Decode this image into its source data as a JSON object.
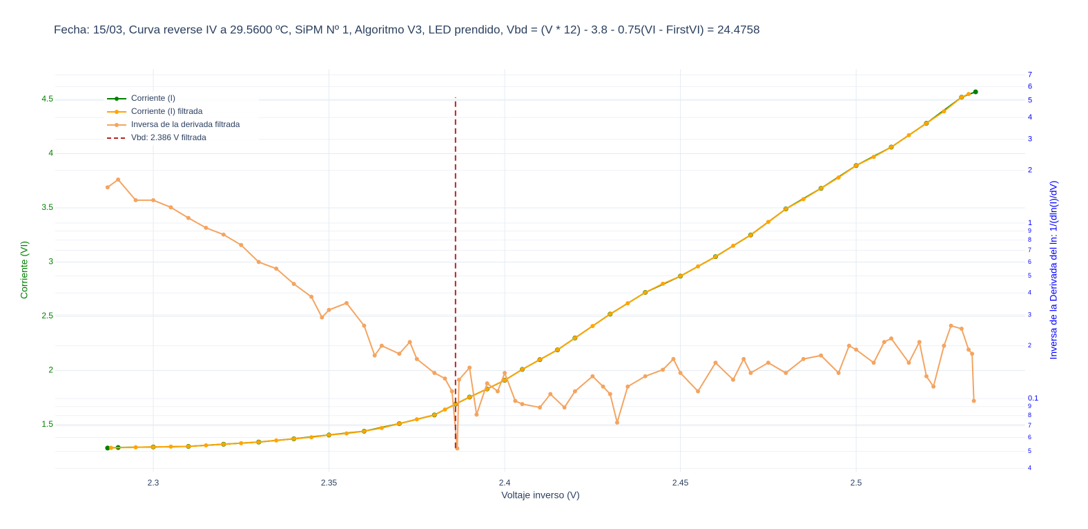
{
  "chart_data": {
    "type": "line",
    "title": "Fecha: 15/03, Curva reverse IV a 29.5600 ºC, SiPM Nº 1, Algoritmo V3, LED prendido,  Vbd = (V * 12) - 3.8 - 0.75(VI - FirstVI) = 24.4758",
    "x_label": "Voltaje inverso (V)",
    "y_label": "Corriente (VI)",
    "y2_label": "Inversa de la Derivada del ln: 1/(dln(I)/dV)",
    "xlim": [
      2.2721,
      2.5481
    ],
    "xticks": [
      2.3,
      2.35,
      2.4,
      2.45,
      2.5
    ],
    "ylim": [
      1.067,
      4.78
    ],
    "yticks": [
      1.5,
      2,
      2.5,
      3,
      3.5,
      4,
      4.5
    ],
    "y2lim": [
      0.0383,
      7.55
    ],
    "y2_log": true,
    "y2ticks": [
      {
        "value": 0.04,
        "label": "4"
      },
      {
        "value": 0.05,
        "label": "5"
      },
      {
        "value": 0.06,
        "label": "6"
      },
      {
        "value": 0.07,
        "label": "7"
      },
      {
        "value": 0.08,
        "label": "8"
      },
      {
        "value": 0.09,
        "label": "9"
      },
      0.1,
      {
        "value": 0.2,
        "label": "2"
      },
      {
        "value": 0.3,
        "label": "3"
      },
      {
        "value": 0.4,
        "label": "4"
      },
      {
        "value": 0.5,
        "label": "5"
      },
      {
        "value": 0.6,
        "label": "6"
      },
      {
        "value": 0.7,
        "label": "7"
      },
      {
        "value": 0.8,
        "label": "8"
      },
      {
        "value": 0.9,
        "label": "9"
      },
      1,
      2,
      3,
      4,
      5,
      6,
      7
    ],
    "grid": true,
    "legend": "top-left",
    "series": [
      {
        "name": "Corriente (I)",
        "color": "#008000",
        "mode": "lines+markers",
        "axis": "y",
        "x": [
          2.287,
          2.29,
          2.3,
          2.31,
          2.32,
          2.33,
          2.34,
          2.35,
          2.36,
          2.37,
          2.38,
          2.386,
          2.39,
          2.395,
          2.4,
          2.405,
          2.41,
          2.415,
          2.42,
          2.43,
          2.44,
          2.45,
          2.46,
          2.47,
          2.48,
          2.49,
          2.5,
          2.51,
          2.52,
          2.53,
          2.534
        ],
        "values": [
          1.285,
          1.29,
          1.295,
          1.3,
          1.32,
          1.34,
          1.37,
          1.405,
          1.44,
          1.51,
          1.59,
          1.69,
          1.755,
          1.83,
          1.91,
          2.01,
          2.1,
          2.19,
          2.3,
          2.52,
          2.72,
          2.87,
          3.05,
          3.25,
          3.49,
          3.68,
          3.89,
          4.06,
          4.28,
          4.52,
          4.57
        ]
      },
      {
        "name": "Corriente (I) filtrada",
        "color": "#FFA500",
        "mode": "lines+markers",
        "axis": "y",
        "x": [
          2.288,
          2.295,
          2.3,
          2.305,
          2.31,
          2.315,
          2.32,
          2.325,
          2.33,
          2.335,
          2.34,
          2.345,
          2.35,
          2.355,
          2.36,
          2.365,
          2.37,
          2.375,
          2.38,
          2.383,
          2.386,
          2.39,
          2.395,
          2.4,
          2.405,
          2.41,
          2.415,
          2.42,
          2.425,
          2.43,
          2.435,
          2.44,
          2.445,
          2.45,
          2.455,
          2.46,
          2.465,
          2.47,
          2.475,
          2.48,
          2.485,
          2.49,
          2.495,
          2.5,
          2.505,
          2.51,
          2.515,
          2.52,
          2.525,
          2.53,
          2.532
        ],
        "values": [
          1.287,
          1.292,
          1.295,
          1.298,
          1.3,
          1.31,
          1.32,
          1.33,
          1.34,
          1.355,
          1.37,
          1.385,
          1.405,
          1.42,
          1.44,
          1.47,
          1.51,
          1.55,
          1.59,
          1.64,
          1.69,
          1.755,
          1.83,
          1.91,
          2.01,
          2.1,
          2.19,
          2.3,
          2.41,
          2.52,
          2.62,
          2.72,
          2.8,
          2.87,
          2.96,
          3.05,
          3.15,
          3.25,
          3.37,
          3.49,
          3.58,
          3.68,
          3.78,
          3.89,
          3.97,
          4.06,
          4.17,
          4.28,
          4.39,
          4.52,
          4.55
        ]
      },
      {
        "name": "Inversa de la derivada filtrada",
        "color": "#F4A460",
        "mode": "lines+markers",
        "axis": "y2",
        "x": [
          2.287,
          2.29,
          2.295,
          2.3,
          2.305,
          2.31,
          2.315,
          2.32,
          2.325,
          2.33,
          2.335,
          2.34,
          2.345,
          2.348,
          2.35,
          2.355,
          2.36,
          2.363,
          2.365,
          2.37,
          2.373,
          2.375,
          2.38,
          2.383,
          2.385,
          2.3865,
          2.387,
          2.39,
          2.392,
          2.395,
          2.398,
          2.4,
          2.403,
          2.405,
          2.41,
          2.413,
          2.417,
          2.42,
          2.425,
          2.428,
          2.43,
          2.432,
          2.435,
          2.44,
          2.445,
          2.448,
          2.45,
          2.455,
          2.46,
          2.465,
          2.468,
          2.47,
          2.475,
          2.48,
          2.485,
          2.49,
          2.495,
          2.498,
          2.5,
          2.505,
          2.508,
          2.51,
          2.515,
          2.518,
          2.52,
          2.522,
          2.525,
          2.527,
          2.53,
          2.532,
          2.533,
          2.5335
        ],
        "values": [
          1.6,
          1.77,
          1.35,
          1.35,
          1.23,
          1.07,
          0.94,
          0.86,
          0.75,
          0.6,
          0.55,
          0.45,
          0.38,
          0.29,
          0.32,
          0.35,
          0.26,
          0.176,
          0.2,
          0.18,
          0.21,
          0.168,
          0.14,
          0.13,
          0.11,
          0.052,
          0.128,
          0.15,
          0.081,
          0.122,
          0.11,
          0.14,
          0.097,
          0.093,
          0.089,
          0.106,
          0.089,
          0.11,
          0.134,
          0.117,
          0.106,
          0.073,
          0.117,
          0.134,
          0.146,
          0.168,
          0.14,
          0.11,
          0.16,
          0.128,
          0.168,
          0.14,
          0.16,
          0.14,
          0.168,
          0.176,
          0.14,
          0.2,
          0.19,
          0.16,
          0.21,
          0.22,
          0.16,
          0.21,
          0.134,
          0.117,
          0.2,
          0.26,
          0.25,
          0.19,
          0.18,
          0.097
        ]
      },
      {
        "name": "Vbd: 2.386 V filtrada",
        "color": "#B22222",
        "mode": "dash",
        "axis": "y",
        "x": [
          2.386,
          2.386
        ],
        "values": [
          1.285,
          4.52
        ]
      }
    ]
  }
}
